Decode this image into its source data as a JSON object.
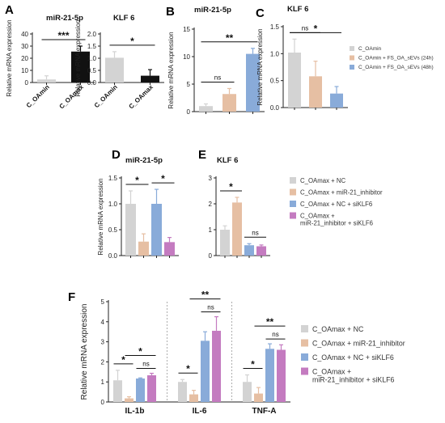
{
  "figure": {
    "colors": {
      "light_gray": "#d3d3d3",
      "black": "#111111",
      "peach": "#e6bfa3",
      "blue": "#89abd9",
      "purple": "#c47bc0"
    },
    "legend_bc": [
      "C_OAmin",
      "C_OAmin + FS_OA_sEVs (24h)",
      "C_OAmin + FS_OA_sEVs (48h)"
    ],
    "legend_de": [
      "C_OAmax + NC",
      "C_OAmax + miR-21_inhibitor",
      "C_OAmax + NC + siKLF6",
      "C_OAmax +",
      "miR-21_inhibitor + siKLF6"
    ],
    "legend_f": [
      "C_OAmax + NC",
      "C_OAmax + miR-21_inhibitor",
      "C_OAmax + NC + siKLF6",
      "C_OAmax +",
      "miR-21_inhibitor + siKLF6"
    ]
  },
  "chart_data": [
    {
      "panel": "A",
      "type": "bar",
      "title": "miR-21-5p",
      "ylabel": "Relative mRNA expression",
      "categories": [
        "C_OAmin",
        "C_OAmax"
      ],
      "values": [
        2.5,
        25.5
      ],
      "errors": [
        3.0,
        4.5
      ],
      "ylim": [
        0,
        40
      ],
      "yticks": [
        "0",
        "10",
        "20",
        "30",
        "40"
      ],
      "colors": [
        "#d3d3d3",
        "#111111"
      ],
      "significance": [
        {
          "from": 0,
          "to": 1,
          "label": "***"
        }
      ]
    },
    {
      "panel": "A",
      "type": "bar",
      "title": "KLF 6",
      "ylabel": "Relative mRNA expression",
      "categories": [
        "C_OAmin",
        "C_OAmax"
      ],
      "values": [
        1.02,
        0.28
      ],
      "errors": [
        0.25,
        0.25
      ],
      "ylim": [
        0,
        2.0
      ],
      "yticks": [
        "0.0",
        "0.5",
        "1.0",
        "1.5",
        "2.0"
      ],
      "colors": [
        "#d3d3d3",
        "#111111"
      ],
      "significance": [
        {
          "from": 0,
          "to": 1,
          "label": "*"
        }
      ]
    },
    {
      "panel": "B",
      "type": "bar",
      "title": "miR-21-5p",
      "ylabel": "Relative mRNA expression",
      "categories": [
        "",
        "",
        ""
      ],
      "values": [
        1.0,
        3.2,
        10.5
      ],
      "errors": [
        0.4,
        1.0,
        1.0
      ],
      "ylim": [
        0,
        15
      ],
      "yticks": [
        "0",
        "5",
        "10",
        "15"
      ],
      "colors": [
        "#d3d3d3",
        "#e6bfa3",
        "#89abd9"
      ],
      "significance": [
        {
          "from": 0,
          "to": 1,
          "label": "ns"
        },
        {
          "from": 0,
          "to": 2,
          "label": "**"
        }
      ]
    },
    {
      "panel": "C",
      "type": "bar",
      "title": "KLF 6",
      "ylabel": "Relative mRNA expression",
      "categories": [
        "",
        "",
        ""
      ],
      "values": [
        1.02,
        0.58,
        0.26
      ],
      "errors": [
        0.25,
        0.28,
        0.13
      ],
      "ylim": [
        0,
        1.5
      ],
      "yticks": [
        "0.0",
        "0.5",
        "1.0",
        "1.5"
      ],
      "colors": [
        "#d3d3d3",
        "#e6bfa3",
        "#89abd9"
      ],
      "significance": [
        {
          "from": 0,
          "to": 1,
          "label": "ns"
        },
        {
          "from": 0,
          "to": 2,
          "label": "*"
        }
      ]
    },
    {
      "panel": "D",
      "type": "bar",
      "title": "miR-21-5p",
      "ylabel": "Relative mRNA expression",
      "categories": [
        "",
        "",
        "",
        ""
      ],
      "values": [
        1.0,
        0.27,
        1.0,
        0.26
      ],
      "errors": [
        0.25,
        0.15,
        0.28,
        0.09
      ],
      "ylim": [
        0,
        1.5
      ],
      "yticks": [
        "0.0",
        "0.5",
        "1.0",
        "1.5"
      ],
      "colors": [
        "#d3d3d3",
        "#e6bfa3",
        "#89abd9",
        "#c47bc0"
      ],
      "significance": [
        {
          "from": 0,
          "to": 1,
          "label": "*"
        },
        {
          "from": 2,
          "to": 3,
          "label": "*"
        }
      ]
    },
    {
      "panel": "E",
      "type": "bar",
      "title": "KLF 6",
      "ylabel": "",
      "categories": [
        "",
        "",
        "",
        ""
      ],
      "values": [
        1.0,
        2.05,
        0.4,
        0.36
      ],
      "errors": [
        0.15,
        0.2,
        0.06,
        0.05
      ],
      "ylim": [
        0,
        3
      ],
      "yticks": [
        "0",
        "1",
        "2",
        "3"
      ],
      "colors": [
        "#d3d3d3",
        "#e6bfa3",
        "#89abd9",
        "#c47bc0"
      ],
      "significance": [
        {
          "from": 0,
          "to": 1,
          "label": "*"
        },
        {
          "from": 2,
          "to": 3,
          "label": "ns"
        }
      ]
    },
    {
      "panel": "F",
      "type": "bar",
      "title": "",
      "ylabel": "Relative mRNA expression",
      "categories": [
        "IL-1b",
        "IL-6",
        "TNF-A"
      ],
      "series": [
        {
          "name": "C_OAmax + NC",
          "values": [
            1.08,
            1.0,
            1.0
          ],
          "errors": [
            0.5,
            0.12,
            0.35
          ]
        },
        {
          "name": "C_OAmax + miR-21_inhibitor",
          "values": [
            0.18,
            0.38,
            0.42
          ],
          "errors": [
            0.08,
            0.2,
            0.3
          ]
        },
        {
          "name": "C_OAmax + NC + siKLF6",
          "values": [
            1.17,
            3.05,
            2.65
          ],
          "errors": [
            0.03,
            0.45,
            0.25
          ]
        },
        {
          "name": "C_OAmax + miR-21_inhibitor + siKLF6",
          "values": [
            1.33,
            3.55,
            2.6
          ],
          "errors": [
            0.1,
            0.7,
            0.25
          ]
        }
      ],
      "ylim": [
        0,
        5
      ],
      "yticks": [
        "0",
        "1",
        "2",
        "3",
        "4",
        "5"
      ],
      "significance": [
        {
          "group": 0,
          "from": 0,
          "to": 1,
          "label": "*"
        },
        {
          "group": 0,
          "from": 1,
          "to": 3,
          "label": "*"
        },
        {
          "group": 0,
          "from": 2,
          "to": 3,
          "label": "ns"
        },
        {
          "group": 1,
          "from": 0,
          "to": 1,
          "label": "*"
        },
        {
          "group": 1,
          "from": 1,
          "to": 3,
          "label": "**"
        },
        {
          "group": 1,
          "from": 2,
          "to": 3,
          "label": "ns"
        },
        {
          "group": 2,
          "from": 0,
          "to": 1,
          "label": "*"
        },
        {
          "group": 2,
          "from": 1,
          "to": 3,
          "label": "**"
        },
        {
          "group": 2,
          "from": 2,
          "to": 3,
          "label": "ns"
        }
      ]
    }
  ]
}
